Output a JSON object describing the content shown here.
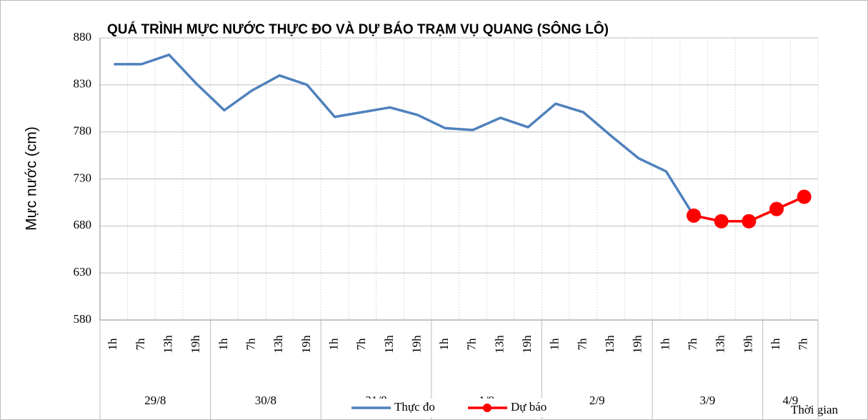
{
  "chart_data": {
    "type": "line",
    "title": "QUÁ TRÌNH MỰC NƯỚC THỰC ĐO VÀ DỰ BÁO TRẠM VỤ QUANG (SÔNG LÔ)",
    "y_label": "Mực nước (cm)",
    "x_label": "Thời gian",
    "groups": [
      {
        "label": "29/8",
        "categories": [
          "1h",
          "7h",
          "13h",
          "19h"
        ]
      },
      {
        "label": "30/8",
        "categories": [
          "1h",
          "7h",
          "13h",
          "19h"
        ]
      },
      {
        "label": "31/8",
        "categories": [
          "1h",
          "7h",
          "13h",
          "19h"
        ]
      },
      {
        "label": "1/9",
        "categories": [
          "1h",
          "7h",
          "13h",
          "19h"
        ]
      },
      {
        "label": "2/9",
        "categories": [
          "1h",
          "7h",
          "13h",
          "19h"
        ]
      },
      {
        "label": "3/9",
        "categories": [
          "1h",
          "7h",
          "13h",
          "19h"
        ]
      },
      {
        "label": "4/9",
        "categories": [
          "1h",
          "7h"
        ]
      }
    ],
    "series": [
      {
        "name": "Thực đo",
        "color": "#4f81bd",
        "marker": false,
        "values": [
          852,
          852,
          862,
          831,
          803,
          824,
          840,
          830,
          796,
          801,
          806,
          798,
          784,
          782,
          795,
          785,
          810,
          801,
          776,
          752,
          738,
          691,
          null,
          null,
          null,
          null
        ]
      },
      {
        "name": "Dự báo",
        "color": "#ff0000",
        "marker": true,
        "values": [
          null,
          null,
          null,
          null,
          null,
          null,
          null,
          null,
          null,
          null,
          null,
          null,
          null,
          null,
          null,
          null,
          null,
          null,
          null,
          null,
          null,
          691,
          685,
          685,
          698,
          711
        ]
      }
    ],
    "ylim": [
      580,
      880
    ],
    "yticks": [
      580,
      630,
      680,
      730,
      780,
      830,
      880
    ],
    "grid": true
  }
}
